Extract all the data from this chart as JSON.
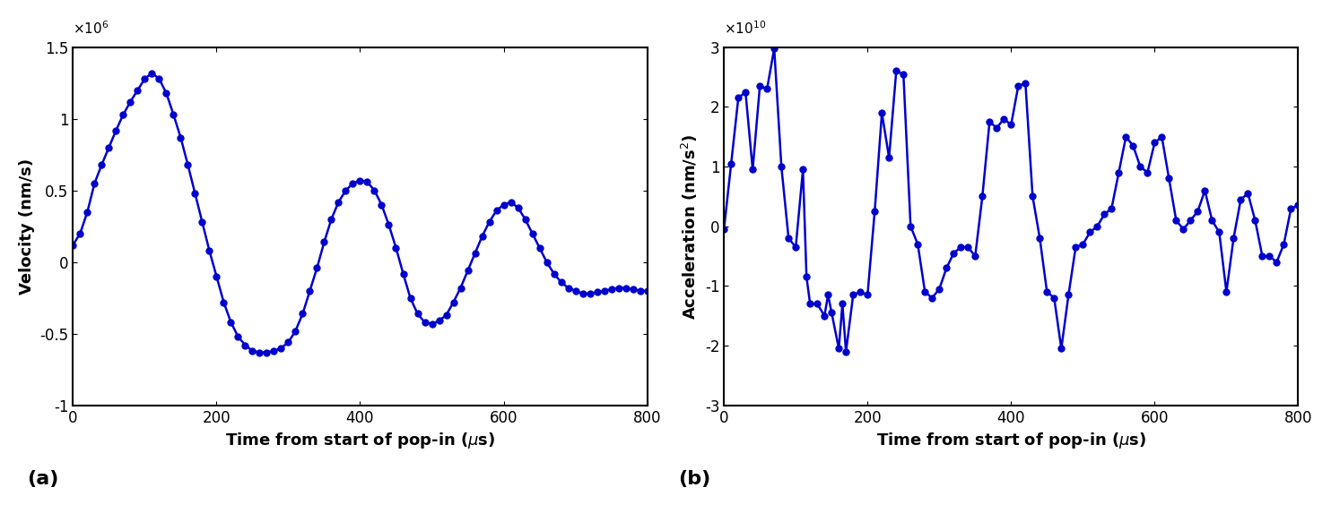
{
  "vel_x": [
    0,
    10,
    20,
    30,
    40,
    50,
    60,
    70,
    80,
    90,
    100,
    110,
    120,
    130,
    140,
    150,
    160,
    170,
    180,
    190,
    200,
    210,
    220,
    230,
    240,
    250,
    260,
    270,
    280,
    290,
    300,
    310,
    320,
    330,
    340,
    350,
    360,
    370,
    380,
    390,
    400,
    410,
    420,
    430,
    440,
    450,
    460,
    470,
    480,
    490,
    500,
    510,
    520,
    530,
    540,
    550,
    560,
    570,
    580,
    590,
    600,
    610,
    620,
    630,
    640,
    650,
    660,
    670,
    680,
    690,
    700,
    710,
    720,
    730,
    740,
    750,
    760,
    770,
    780,
    790,
    800
  ],
  "vel_y": [
    0.12,
    0.2,
    0.35,
    0.55,
    0.68,
    0.8,
    0.92,
    1.03,
    1.12,
    1.2,
    1.28,
    1.32,
    1.28,
    1.18,
    1.03,
    0.87,
    0.68,
    0.48,
    0.28,
    0.08,
    -0.1,
    -0.28,
    -0.42,
    -0.52,
    -0.58,
    -0.62,
    -0.63,
    -0.63,
    -0.62,
    -0.6,
    -0.56,
    -0.48,
    -0.36,
    -0.2,
    -0.04,
    0.14,
    0.3,
    0.42,
    0.5,
    0.55,
    0.57,
    0.56,
    0.5,
    0.4,
    0.26,
    0.1,
    -0.08,
    -0.25,
    -0.36,
    -0.42,
    -0.43,
    -0.41,
    -0.37,
    -0.28,
    -0.18,
    -0.06,
    0.06,
    0.18,
    0.28,
    0.36,
    0.4,
    0.42,
    0.38,
    0.3,
    0.2,
    0.1,
    0.0,
    -0.08,
    -0.14,
    -0.18,
    -0.2,
    -0.22,
    -0.22,
    -0.21,
    -0.2,
    -0.19,
    -0.18,
    -0.18,
    -0.19,
    -0.2,
    -0.2
  ],
  "acc_x": [
    0,
    10,
    20,
    30,
    40,
    50,
    60,
    70,
    80,
    90,
    100,
    110,
    115,
    120,
    130,
    140,
    145,
    150,
    160,
    165,
    170,
    180,
    190,
    200,
    210,
    220,
    230,
    240,
    250,
    260,
    270,
    280,
    290,
    300,
    310,
    320,
    330,
    340,
    350,
    360,
    370,
    380,
    390,
    400,
    410,
    420,
    430,
    440,
    450,
    460,
    470,
    480,
    490,
    500,
    510,
    520,
    530,
    540,
    550,
    560,
    570,
    580,
    590,
    600,
    610,
    620,
    630,
    640,
    650,
    660,
    670,
    680,
    690,
    700,
    710,
    720,
    730,
    740,
    750,
    760,
    770,
    780,
    790,
    800
  ],
  "acc_y": [
    -0.05,
    1.05,
    2.15,
    2.25,
    0.95,
    2.35,
    2.3,
    2.98,
    1.0,
    -0.2,
    -0.35,
    0.95,
    -0.85,
    -1.3,
    -1.3,
    -1.5,
    -1.15,
    -1.45,
    -2.05,
    -1.3,
    -2.1,
    -1.15,
    -1.1,
    -1.15,
    0.25,
    1.9,
    1.15,
    2.6,
    2.55,
    0.0,
    -0.3,
    -1.1,
    -1.2,
    -1.05,
    -0.7,
    -0.45,
    -0.35,
    -0.35,
    -0.5,
    0.5,
    1.75,
    1.65,
    1.8,
    1.7,
    2.35,
    2.4,
    0.5,
    -0.2,
    -1.1,
    -1.2,
    -2.05,
    -1.15,
    -0.35,
    -0.3,
    -0.1,
    0.0,
    0.2,
    0.3,
    0.9,
    1.5,
    1.35,
    1.0,
    0.9,
    1.4,
    1.5,
    0.8,
    0.1,
    -0.05,
    0.1,
    0.25,
    0.6,
    0.1,
    -0.1,
    -1.1,
    -0.2,
    0.45,
    0.55,
    0.1,
    -0.5,
    -0.5,
    -0.6,
    -0.3,
    0.3,
    0.35
  ],
  "line_color": "#0000CD",
  "marker_size": 5,
  "line_width": 1.8,
  "vel_ylabel": "Velocity (nm/s)",
  "acc_ylabel": "Acceleration (nm/s$^2$)",
  "xlabel": "Time from start of pop-in ($\\mu$s)",
  "vel_ylim": [
    -1.0,
    1.5
  ],
  "acc_ylim": [
    -3.0,
    3.0
  ],
  "xlim": [
    0,
    800
  ],
  "vel_yticks": [
    -1.0,
    -0.5,
    0.0,
    0.5,
    1.0,
    1.5
  ],
  "acc_yticks": [
    -3,
    -2,
    -1,
    0,
    1,
    2,
    3
  ],
  "xticks": [
    0,
    200,
    400,
    600,
    800
  ],
  "label_a": "(a)",
  "label_b": "(b)"
}
